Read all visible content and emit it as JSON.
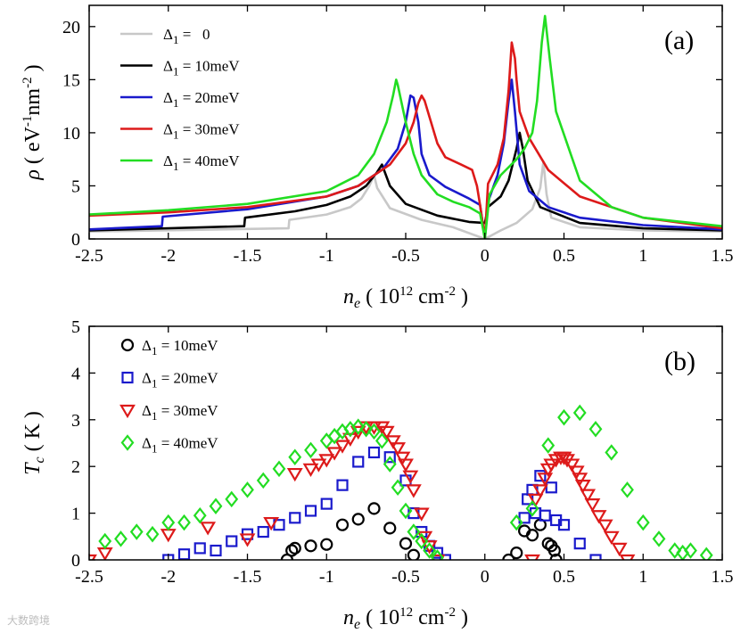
{
  "watermark": "大数跨境",
  "chart_data": [
    {
      "type": "line",
      "panel_label": "(a)",
      "ylabel": "ρ ( eV-1nm-2 )",
      "xlabel": "ne ( 1012 cm-2 )",
      "xlim": [
        -2.5,
        1.5
      ],
      "ylim": [
        0,
        22
      ],
      "x_ticks": [
        -2.5,
        -2,
        -1.5,
        -1,
        -0.5,
        0,
        0.5,
        1,
        1.5
      ],
      "x_tick_labels": [
        "-2.5",
        "-2",
        "-1.5",
        "-1",
        "-0.5",
        "0",
        "0.5",
        "1",
        "1.5"
      ],
      "y_ticks": [
        0,
        5,
        10,
        15,
        20
      ],
      "y_tick_labels": [
        "0",
        "5",
        "10",
        "15",
        "20"
      ],
      "legend_position": "top-left",
      "series": [
        {
          "name": "Δ1 =   0",
          "color": "#c8c8c8",
          "x": [
            -2.5,
            -1.24,
            -1.235,
            -1.0,
            -0.85,
            -0.78,
            -0.73,
            -0.7,
            -0.68,
            -0.6,
            -0.4,
            -0.2,
            0,
            0.1,
            0.2,
            0.3,
            0.35,
            0.37,
            0.39,
            0.42,
            0.6,
            1.0,
            1.5
          ],
          "y": [
            0.7,
            1.0,
            1.8,
            2.3,
            3.0,
            3.8,
            5.0,
            6.0,
            4.8,
            2.9,
            1.8,
            1.1,
            0.0,
            0.8,
            1.5,
            2.8,
            4.8,
            7.3,
            4.2,
            2.0,
            1.1,
            0.8,
            0.7
          ]
        },
        {
          "name": "Δ1 = 10meV",
          "color": "#000000",
          "x": [
            -2.5,
            -1.52,
            -1.515,
            -1.2,
            -1.0,
            -0.85,
            -0.75,
            -0.68,
            -0.65,
            -0.6,
            -0.5,
            -0.3,
            -0.1,
            0,
            0.02,
            0.1,
            0.15,
            0.2,
            0.22,
            0.24,
            0.27,
            0.35,
            0.6,
            1.0,
            1.5
          ],
          "y": [
            0.8,
            1.2,
            2.0,
            2.6,
            3.2,
            4.0,
            5.0,
            6.3,
            7.0,
            5.0,
            3.3,
            2.2,
            1.6,
            1.5,
            3.0,
            4.0,
            5.5,
            8.5,
            10.0,
            8.5,
            5.5,
            3.0,
            1.5,
            1.0,
            0.8
          ]
        },
        {
          "name": "Δ1 = 20meV",
          "color": "#1a1acc",
          "x": [
            -2.5,
            -2.04,
            -2.035,
            -1.5,
            -1.0,
            -0.8,
            -0.65,
            -0.55,
            -0.5,
            -0.47,
            -0.45,
            -0.42,
            -0.4,
            -0.35,
            -0.25,
            -0.1,
            -0.03,
            0,
            0.02,
            0.08,
            0.12,
            0.15,
            0.17,
            0.19,
            0.22,
            0.28,
            0.4,
            0.6,
            1.0,
            1.5
          ],
          "y": [
            0.9,
            1.2,
            2.1,
            2.8,
            4.0,
            5.0,
            6.5,
            8.5,
            11.0,
            13.5,
            13.3,
            11.0,
            8.0,
            6.0,
            4.9,
            3.8,
            3.2,
            0.0,
            3.5,
            6.0,
            9.0,
            13.0,
            15.0,
            12.0,
            7.0,
            4.5,
            3.0,
            2.0,
            1.3,
            0.9
          ]
        },
        {
          "name": "Δ1 = 30meV",
          "color": "#dd1a1a",
          "x": [
            -2.5,
            -2.0,
            -1.5,
            -1.0,
            -0.8,
            -0.6,
            -0.5,
            -0.45,
            -0.42,
            -0.4,
            -0.38,
            -0.35,
            -0.3,
            -0.25,
            -0.15,
            -0.08,
            -0.05,
            -0.03,
            0,
            0.02,
            0.08,
            0.12,
            0.15,
            0.17,
            0.19,
            0.2,
            0.22,
            0.28,
            0.4,
            0.6,
            1.0,
            1.5
          ],
          "y": [
            2.2,
            2.5,
            3.0,
            4.0,
            5.0,
            7.0,
            9.0,
            11.0,
            12.8,
            13.5,
            13.0,
            11.5,
            9.0,
            7.7,
            7.0,
            6.5,
            5.0,
            3.2,
            0.0,
            5.2,
            7.0,
            9.5,
            14.0,
            18.5,
            17.0,
            15.0,
            12.0,
            9.5,
            6.5,
            4.0,
            2.0,
            1.0
          ]
        },
        {
          "name": "Δ1 = 40meV",
          "color": "#22dd22",
          "x": [
            -2.5,
            -2.0,
            -1.5,
            -1.0,
            -0.8,
            -0.7,
            -0.62,
            -0.58,
            -0.56,
            -0.55,
            -0.5,
            -0.45,
            -0.4,
            -0.3,
            -0.2,
            -0.1,
            -0.03,
            0,
            0.03,
            0.1,
            0.2,
            0.25,
            0.3,
            0.33,
            0.36,
            0.38,
            0.41,
            0.45,
            0.6,
            0.8,
            1.0,
            1.5
          ],
          "y": [
            2.3,
            2.7,
            3.3,
            4.5,
            6.0,
            8.0,
            11.0,
            13.5,
            15.0,
            14.5,
            11.0,
            8.0,
            6.0,
            4.2,
            3.5,
            3.0,
            2.4,
            0.0,
            4.2,
            6.0,
            7.5,
            8.5,
            10.0,
            13.0,
            18.5,
            21.0,
            17.0,
            12.0,
            5.5,
            3.0,
            2.0,
            1.2
          ]
        }
      ]
    },
    {
      "type": "scatter",
      "panel_label": "(b)",
      "ylabel": "Tc ( K )",
      "xlabel": "ne ( 1012 cm-2 )",
      "xlim": [
        -2.5,
        1.5
      ],
      "ylim": [
        0,
        5
      ],
      "x_ticks": [
        -2.5,
        -2,
        -1.5,
        -1,
        -0.5,
        0,
        0.5,
        1,
        1.5
      ],
      "x_tick_labels": [
        "-2.5",
        "-2",
        "-1.5",
        "-1",
        "-0.5",
        "0",
        "0.5",
        "1",
        "1.5"
      ],
      "y_ticks": [
        0,
        1,
        2,
        3,
        4,
        5
      ],
      "y_tick_labels": [
        "0",
        "1",
        "2",
        "3",
        "4",
        "5"
      ],
      "legend_position": "top-left",
      "series": [
        {
          "name": "Δ1 = 10meV",
          "marker": "circle",
          "color": "#000000",
          "x": [
            -1.25,
            -1.22,
            -1.2,
            -1.1,
            -1.0,
            -0.9,
            -0.8,
            -0.7,
            -0.6,
            -0.5,
            -0.45,
            0.15,
            0.2,
            0.25,
            0.3,
            0.35,
            0.4,
            0.42,
            0.44,
            0.45
          ],
          "y": [
            0.0,
            0.2,
            0.25,
            0.3,
            0.33,
            0.75,
            0.87,
            1.1,
            0.68,
            0.35,
            0.1,
            0.0,
            0.15,
            0.62,
            0.53,
            0.75,
            0.35,
            0.3,
            0.2,
            0.0
          ]
        },
        {
          "name": "Δ1 = 20meV",
          "marker": "square",
          "color": "#1a1acc",
          "x": [
            -2.0,
            -1.9,
            -1.8,
            -1.7,
            -1.6,
            -1.5,
            -1.4,
            -1.3,
            -1.2,
            -1.1,
            -1.0,
            -0.9,
            -0.8,
            -0.7,
            -0.6,
            -0.5,
            -0.45,
            -0.4,
            -0.35,
            -0.3,
            -0.25,
            0.25,
            0.27,
            0.3,
            0.32,
            0.35,
            0.38,
            0.42,
            0.45,
            0.5,
            0.6,
            0.7
          ],
          "y": [
            0.0,
            0.12,
            0.25,
            0.2,
            0.4,
            0.55,
            0.6,
            0.75,
            0.9,
            1.05,
            1.2,
            1.6,
            2.1,
            2.3,
            2.2,
            1.7,
            1.0,
            0.6,
            0.3,
            0.15,
            0.0,
            0.9,
            1.3,
            1.5,
            1.0,
            1.8,
            0.95,
            1.55,
            0.85,
            0.75,
            0.35,
            0.0
          ]
        },
        {
          "name": "Δ1 = 30meV",
          "marker": "triangle-down",
          "color": "#dd1a1a",
          "x": [
            -2.5,
            -2.4,
            -2.0,
            -1.75,
            -1.5,
            -1.35,
            -1.2,
            -1.1,
            -1.05,
            -1.0,
            -0.95,
            -0.9,
            -0.85,
            -0.8,
            -0.75,
            -0.7,
            -0.65,
            -0.62,
            -0.58,
            -0.55,
            -0.52,
            -0.5,
            -0.47,
            -0.45,
            -0.4,
            -0.38,
            -0.35,
            -0.3,
            0.3,
            0.32,
            0.35,
            0.38,
            0.4,
            0.42,
            0.45,
            0.48,
            0.5,
            0.52,
            0.55,
            0.58,
            0.6,
            0.62,
            0.65,
            0.68,
            0.72,
            0.76,
            0.8,
            0.85,
            0.9
          ],
          "y": [
            0.0,
            0.15,
            0.55,
            0.7,
            0.45,
            0.8,
            1.85,
            1.95,
            2.05,
            2.15,
            2.3,
            2.45,
            2.6,
            2.75,
            2.85,
            2.85,
            2.85,
            2.75,
            2.55,
            2.4,
            2.2,
            2.05,
            1.8,
            1.5,
            1.0,
            0.5,
            0.3,
            0.0,
            0.0,
            1.3,
            1.5,
            1.75,
            1.95,
            2.05,
            2.15,
            2.2,
            2.2,
            2.15,
            2.05,
            1.9,
            1.75,
            1.6,
            1.4,
            1.2,
            0.95,
            0.75,
            0.5,
            0.25,
            0.0
          ]
        },
        {
          "name": "Δ1 = 40meV",
          "marker": "diamond",
          "color": "#22dd22",
          "x": [
            -2.4,
            -2.3,
            -2.2,
            -2.1,
            -2.0,
            -1.9,
            -1.8,
            -1.7,
            -1.6,
            -1.5,
            -1.4,
            -1.3,
            -1.2,
            -1.1,
            -1.0,
            -0.95,
            -0.9,
            -0.85,
            -0.8,
            -0.75,
            -0.7,
            -0.65,
            -0.6,
            -0.55,
            -0.5,
            -0.45,
            -0.4,
            -0.35,
            -0.3,
            0.2,
            0.3,
            0.4,
            0.5,
            0.6,
            0.7,
            0.8,
            0.9,
            1.0,
            1.1,
            1.2,
            1.25,
            1.3,
            1.4
          ],
          "y": [
            0.4,
            0.45,
            0.6,
            0.55,
            0.8,
            0.8,
            0.95,
            1.15,
            1.3,
            1.5,
            1.7,
            1.95,
            2.2,
            2.35,
            2.55,
            2.65,
            2.75,
            2.8,
            2.85,
            2.8,
            2.75,
            2.55,
            2.05,
            1.55,
            1.05,
            0.6,
            0.4,
            0.2,
            0.05,
            0.8,
            1.1,
            2.45,
            3.05,
            3.15,
            2.8,
            2.3,
            1.5,
            0.8,
            0.45,
            0.2,
            0.15,
            0.2,
            0.1
          ]
        }
      ]
    }
  ]
}
